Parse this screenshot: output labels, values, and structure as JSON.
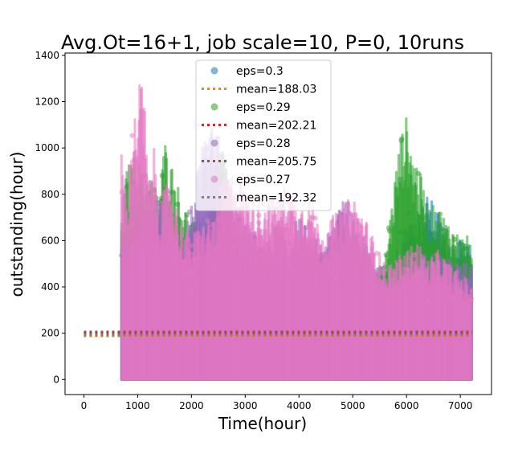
{
  "chart_data": {
    "type": "scatter",
    "title": "Avg.Ot=16+1, job scale=10, P=0, 10runs",
    "xlabel": "Time(hour)",
    "ylabel": "outstanding(hour)",
    "xlim": [
      -350,
      7580
    ],
    "ylim": [
      -65,
      1410
    ],
    "xticks": [
      0,
      1000,
      2000,
      3000,
      4000,
      5000,
      6000,
      7000
    ],
    "yticks": [
      0,
      200,
      400,
      600,
      800,
      1000,
      1200,
      1400
    ],
    "grid": false,
    "legend_position": "top-center",
    "series": [
      {
        "name": "eps=0.3",
        "kind": "scatter",
        "color": "#1f77b4",
        "x_range": [
          700,
          7220
        ],
        "envelope": [
          [
            700,
            700
          ],
          [
            800,
            640
          ],
          [
            1000,
            720
          ],
          [
            1200,
            760
          ],
          [
            1400,
            640
          ],
          [
            1600,
            680
          ],
          [
            1800,
            600
          ],
          [
            2000,
            640
          ],
          [
            2200,
            700
          ],
          [
            2400,
            740
          ],
          [
            2600,
            820
          ],
          [
            2800,
            620
          ],
          [
            3000,
            640
          ],
          [
            3200,
            600
          ],
          [
            3400,
            560
          ],
          [
            3600,
            540
          ],
          [
            3800,
            520
          ],
          [
            4000,
            600
          ],
          [
            4200,
            580
          ],
          [
            4400,
            540
          ],
          [
            4600,
            580
          ],
          [
            4800,
            640
          ],
          [
            5000,
            620
          ],
          [
            5200,
            620
          ],
          [
            5400,
            480
          ],
          [
            5600,
            500
          ],
          [
            5800,
            560
          ],
          [
            6000,
            680
          ],
          [
            6200,
            720
          ],
          [
            6400,
            800
          ],
          [
            6600,
            720
          ],
          [
            6800,
            620
          ],
          [
            7000,
            600
          ],
          [
            7200,
            580
          ]
        ]
      },
      {
        "name": "mean=188.03",
        "kind": "mean-line",
        "color": "#ff7f0e",
        "value": 188.03,
        "x_range": [
          0,
          7220
        ]
      },
      {
        "name": "eps=0.29",
        "kind": "scatter",
        "color": "#2ca02c",
        "x_range": [
          700,
          7220
        ],
        "envelope": [
          [
            700,
            680
          ],
          [
            800,
            920
          ],
          [
            1000,
            980
          ],
          [
            1100,
            880
          ],
          [
            1200,
            920
          ],
          [
            1400,
            800
          ],
          [
            1500,
            1040
          ],
          [
            1600,
            960
          ],
          [
            1800,
            800
          ],
          [
            2000,
            680
          ],
          [
            2200,
            680
          ],
          [
            2400,
            760
          ],
          [
            2600,
            1060
          ],
          [
            2800,
            640
          ],
          [
            3000,
            600
          ],
          [
            3200,
            620
          ],
          [
            3400,
            560
          ],
          [
            3600,
            620
          ],
          [
            3800,
            520
          ],
          [
            4000,
            560
          ],
          [
            4200,
            560
          ],
          [
            4400,
            560
          ],
          [
            4600,
            620
          ],
          [
            4800,
            640
          ],
          [
            5000,
            640
          ],
          [
            5200,
            560
          ],
          [
            5400,
            440
          ],
          [
            5600,
            520
          ],
          [
            5800,
            920
          ],
          [
            5900,
            1060
          ],
          [
            6000,
            1140
          ],
          [
            6100,
            1000
          ],
          [
            6200,
            940
          ],
          [
            6400,
            760
          ],
          [
            6600,
            740
          ],
          [
            6800,
            680
          ],
          [
            7000,
            620
          ],
          [
            7200,
            620
          ]
        ]
      },
      {
        "name": "mean=202.21",
        "kind": "mean-line",
        "color": "#d62728",
        "value": 202.21,
        "x_range": [
          0,
          7220
        ]
      },
      {
        "name": "eps=0.28",
        "kind": "scatter",
        "color": "#9467bd",
        "x_range": [
          700,
          7220
        ],
        "envelope": [
          [
            700,
            620
          ],
          [
            800,
            560
          ],
          [
            1000,
            680
          ],
          [
            1200,
            720
          ],
          [
            1400,
            780
          ],
          [
            1600,
            700
          ],
          [
            1800,
            620
          ],
          [
            2000,
            760
          ],
          [
            2200,
            1000
          ],
          [
            2400,
            1100
          ],
          [
            2500,
            1060
          ],
          [
            2600,
            960
          ],
          [
            2800,
            780
          ],
          [
            3000,
            680
          ],
          [
            3200,
            640
          ],
          [
            3400,
            600
          ],
          [
            3600,
            700
          ],
          [
            3800,
            620
          ],
          [
            4000,
            720
          ],
          [
            4200,
            620
          ],
          [
            4400,
            600
          ],
          [
            4600,
            640
          ],
          [
            4800,
            860
          ],
          [
            5000,
            700
          ],
          [
            5200,
            620
          ],
          [
            5400,
            480
          ],
          [
            5600,
            440
          ],
          [
            5800,
            440
          ],
          [
            6000,
            460
          ],
          [
            6200,
            520
          ],
          [
            6400,
            560
          ],
          [
            6600,
            540
          ],
          [
            6800,
            520
          ],
          [
            7000,
            500
          ],
          [
            7200,
            520
          ]
        ]
      },
      {
        "name": "mean=205.75",
        "kind": "mean-line",
        "color": "#8c564b",
        "value": 205.75,
        "x_range": [
          0,
          7220
        ]
      },
      {
        "name": "eps=0.27",
        "kind": "scatter",
        "color": "#e377c2",
        "x_range": [
          700,
          7220
        ],
        "envelope": [
          [
            700,
            1030
          ],
          [
            800,
            760
          ],
          [
            900,
            1100
          ],
          [
            1000,
            1200
          ],
          [
            1060,
            1340
          ],
          [
            1120,
            1240
          ],
          [
            1200,
            860
          ],
          [
            1300,
            1000
          ],
          [
            1400,
            760
          ],
          [
            1600,
            880
          ],
          [
            1800,
            680
          ],
          [
            2000,
            620
          ],
          [
            2200,
            680
          ],
          [
            2400,
            700
          ],
          [
            2600,
            880
          ],
          [
            2800,
            900
          ],
          [
            3000,
            820
          ],
          [
            3200,
            760
          ],
          [
            3400,
            780
          ],
          [
            3600,
            800
          ],
          [
            3800,
            860
          ],
          [
            4000,
            760
          ],
          [
            4200,
            800
          ],
          [
            4400,
            640
          ],
          [
            4600,
            700
          ],
          [
            4800,
            740
          ],
          [
            5000,
            800
          ],
          [
            5200,
            720
          ],
          [
            5400,
            600
          ],
          [
            5600,
            500
          ],
          [
            5800,
            520
          ],
          [
            6000,
            560
          ],
          [
            6200,
            600
          ],
          [
            6400,
            520
          ],
          [
            6600,
            560
          ],
          [
            6800,
            500
          ],
          [
            7000,
            460
          ],
          [
            7200,
            420
          ]
        ]
      },
      {
        "name": "mean=192.32",
        "kind": "mean-line",
        "color": "#7f7f7f",
        "value": 192.32,
        "x_range": [
          0,
          7220
        ]
      }
    ]
  }
}
